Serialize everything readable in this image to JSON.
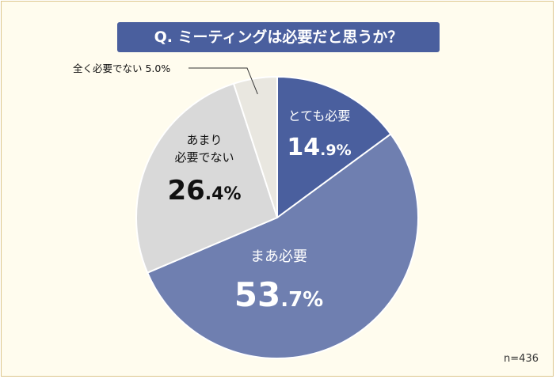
{
  "title": "Q. ミーティングは必要だと思うか？",
  "sample_size": "n=436",
  "colors": {
    "background": "#fffcee",
    "border": "#dcc58c",
    "title_bg": "#4a5f9e",
    "slice_very": "#4a5f9e",
    "slice_somewhat": "#6f7fb0",
    "slice_not_really": "#d9d9d9",
    "slice_not_at_all": "#e9e7e0"
  },
  "chart_data": {
    "type": "pie",
    "title": "Q. ミーティングは必要だと思うか？",
    "start_angle_deg": 0,
    "direction": "clockwise",
    "slices": [
      {
        "label": "とても必要",
        "value": 14.9,
        "int_part": "14",
        "dec_part": ".9%",
        "color": "#4a5f9e",
        "text_color": "#ffffff"
      },
      {
        "label": "まあ必要",
        "value": 53.7,
        "int_part": "53",
        "dec_part": ".7%",
        "color": "#6f7fb0",
        "text_color": "#ffffff"
      },
      {
        "label": "あまり 必要でない",
        "label_lines": [
          "あまり",
          "必要でない"
        ],
        "value": 26.4,
        "int_part": "26",
        "dec_part": ".4%",
        "color": "#d9d9d9",
        "text_color": "#111111"
      },
      {
        "label": "全く必要でない",
        "value": 5.0,
        "display": "全く必要でない 5.0%",
        "color": "#e9e7e0",
        "text_color": "#111111"
      }
    ]
  }
}
